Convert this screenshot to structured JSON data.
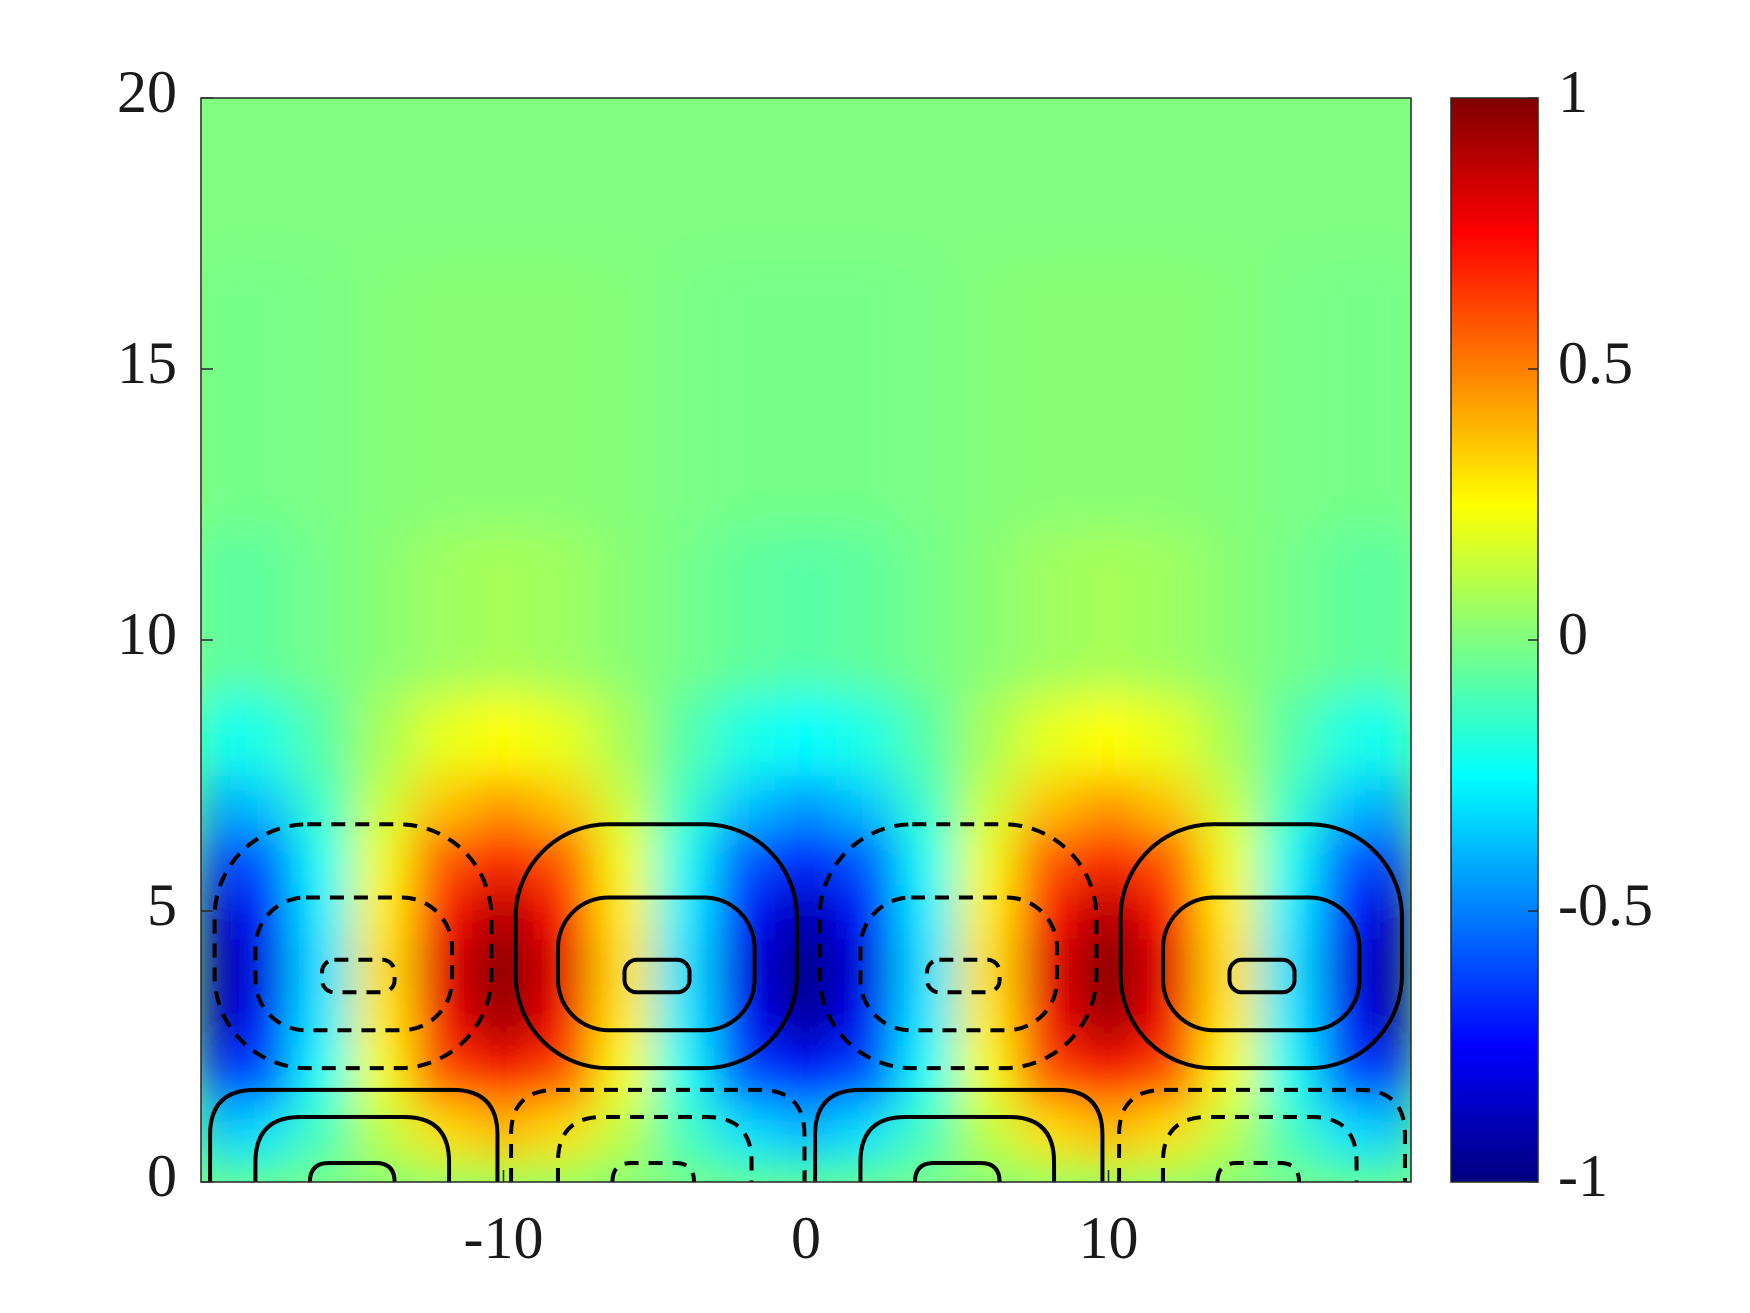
{
  "chart_data": {
    "type": "heatmap",
    "colormap": "jet",
    "xlim": [
      -20,
      20
    ],
    "ylim": [
      0,
      20
    ],
    "xticks": [
      -10,
      0,
      10
    ],
    "yticks": [
      0,
      5,
      10,
      15,
      20
    ],
    "x": [
      -20,
      -18,
      -16,
      -14,
      -12,
      -10,
      -8,
      -6,
      -4,
      -2,
      0,
      2,
      4,
      6,
      8,
      10,
      12,
      14,
      16,
      18,
      20
    ],
    "y": [
      0,
      1,
      2,
      3,
      4,
      5,
      6,
      7,
      8,
      10,
      14,
      20
    ],
    "z": [
      [
        -0.15,
        -0.12,
        -0.05,
        0.05,
        0.12,
        0.15,
        0.12,
        0.05,
        -0.05,
        -0.12,
        -0.15,
        -0.12,
        -0.05,
        0.05,
        0.12,
        0.15,
        0.12,
        0.05,
        -0.05,
        -0.12,
        -0.15
      ],
      [
        -0.4,
        -0.32,
        -0.12,
        0.12,
        0.32,
        0.4,
        0.32,
        0.12,
        -0.12,
        -0.32,
        -0.4,
        -0.32,
        -0.12,
        0.12,
        0.32,
        0.4,
        0.32,
        0.12,
        -0.12,
        -0.32,
        -0.4
      ],
      [
        -0.75,
        -0.61,
        -0.23,
        0.23,
        0.61,
        0.75,
        0.61,
        0.23,
        -0.23,
        -0.61,
        -0.75,
        -0.61,
        -0.23,
        0.23,
        0.61,
        0.75,
        0.61,
        0.23,
        -0.23,
        -0.61,
        -0.75
      ],
      [
        -0.95,
        -0.77,
        -0.29,
        0.29,
        0.77,
        0.95,
        0.77,
        0.29,
        -0.29,
        -0.77,
        -0.95,
        -0.77,
        -0.29,
        0.29,
        0.77,
        0.95,
        0.77,
        0.29,
        -0.29,
        -0.77,
        -0.95
      ],
      [
        -1,
        -0.81,
        -0.31,
        0.31,
        0.81,
        1,
        0.81,
        0.31,
        -0.31,
        -0.81,
        -1,
        -0.81,
        -0.31,
        0.31,
        0.81,
        1,
        0.81,
        0.31,
        -0.31,
        -0.81,
        -1
      ],
      [
        -0.9,
        -0.73,
        -0.28,
        0.28,
        0.73,
        0.9,
        0.73,
        0.28,
        -0.28,
        -0.73,
        -0.9,
        -0.73,
        -0.28,
        0.28,
        0.73,
        0.9,
        0.73,
        0.28,
        -0.28,
        -0.73,
        -0.9
      ],
      [
        -0.7,
        -0.57,
        -0.22,
        0.22,
        0.57,
        0.7,
        0.57,
        0.22,
        -0.22,
        -0.57,
        -0.7,
        -0.57,
        -0.22,
        0.22,
        0.57,
        0.7,
        0.57,
        0.22,
        -0.22,
        -0.57,
        -0.7
      ],
      [
        -0.45,
        -0.36,
        -0.14,
        0.14,
        0.36,
        0.45,
        0.36,
        0.14,
        -0.14,
        -0.36,
        -0.45,
        -0.36,
        -0.14,
        0.14,
        0.36,
        0.45,
        0.36,
        0.14,
        -0.14,
        -0.36,
        -0.45
      ],
      [
        -0.25,
        -0.2,
        -0.08,
        0.08,
        0.2,
        0.25,
        0.2,
        0.08,
        -0.08,
        -0.2,
        -0.25,
        -0.2,
        -0.08,
        0.08,
        0.2,
        0.25,
        0.2,
        0.08,
        -0.08,
        -0.2,
        -0.25
      ],
      [
        -0.08,
        -0.06,
        -0.02,
        0.02,
        0.06,
        0.08,
        0.06,
        0.02,
        -0.02,
        -0.06,
        -0.08,
        -0.06,
        -0.02,
        0.02,
        0.06,
        0.08,
        0.06,
        0.02,
        -0.02,
        -0.06,
        -0.08
      ],
      [
        -0.02,
        -0.02,
        -0.01,
        0.01,
        0.02,
        0.02,
        0.02,
        0.01,
        -0.01,
        -0.02,
        -0.02,
        -0.02,
        -0.01,
        0.01,
        0.02,
        0.02,
        0.02,
        0.01,
        -0.01,
        -0.02,
        -0.02
      ],
      [
        0,
        0,
        0,
        0,
        0,
        0,
        0,
        0,
        0,
        0,
        0,
        0,
        0,
        0,
        0,
        0,
        0,
        0,
        0,
        0,
        0
      ]
    ],
    "colorbar": {
      "lim": [
        -1,
        1
      ],
      "ticks": [
        -1,
        -0.5,
        0,
        0.5,
        1
      ]
    },
    "contours": [
      {
        "style": "dashed",
        "x": [
          -19.55,
          -10.4
        ],
        "y": [
          2.1,
          6.6
        ]
      },
      {
        "style": "dashed",
        "x": [
          -18.2,
          -11.7
        ],
        "y": [
          2.8,
          5.25
        ]
      },
      {
        "style": "dashed",
        "x": [
          -16,
          -13.6
        ],
        "y": [
          3.5,
          4.1
        ]
      },
      {
        "style": "solid",
        "x": [
          -9.6,
          -0.3
        ],
        "y": [
          2.1,
          6.6
        ]
      },
      {
        "style": "solid",
        "x": [
          -8.2,
          -1.7
        ],
        "y": [
          2.8,
          5.25
        ]
      },
      {
        "style": "solid",
        "x": [
          -6,
          -3.85
        ],
        "y": [
          3.5,
          4.1
        ]
      },
      {
        "style": "dashed",
        "x": [
          0.45,
          9.6
        ],
        "y": [
          2.1,
          6.6
        ]
      },
      {
        "style": "dashed",
        "x": [
          1.8,
          8.3
        ],
        "y": [
          2.8,
          5.25
        ]
      },
      {
        "style": "dashed",
        "x": [
          4,
          6.4
        ],
        "y": [
          3.5,
          4.1
        ]
      },
      {
        "style": "solid",
        "x": [
          10.4,
          19.7
        ],
        "y": [
          2.1,
          6.6
        ]
      },
      {
        "style": "solid",
        "x": [
          11.8,
          18.3
        ],
        "y": [
          2.8,
          5.25
        ]
      },
      {
        "style": "solid",
        "x": [
          14,
          16.15
        ],
        "y": [
          3.5,
          4.1
        ]
      },
      {
        "style": "solid",
        "x": [
          -19.7,
          -10.2
        ],
        "y": [
          0,
          1.7
        ]
      },
      {
        "style": "solid",
        "x": [
          -18.2,
          -11.8
        ],
        "y": [
          0,
          1.2
        ]
      },
      {
        "style": "solid",
        "x": [
          -16.4,
          -13.6
        ],
        "y": [
          0,
          0.35
        ]
      },
      {
        "style": "dashed",
        "x": [
          -9.75,
          -0.05
        ],
        "y": [
          0,
          1.7
        ]
      },
      {
        "style": "dashed",
        "x": [
          -8.2,
          -1.8
        ],
        "y": [
          0,
          1.2
        ]
      },
      {
        "style": "dashed",
        "x": [
          -6.4,
          -3.7
        ],
        "y": [
          0,
          0.35
        ]
      },
      {
        "style": "solid",
        "x": [
          0.3,
          9.8
        ],
        "y": [
          0,
          1.7
        ]
      },
      {
        "style": "solid",
        "x": [
          1.8,
          8.2
        ],
        "y": [
          0,
          1.2
        ]
      },
      {
        "style": "solid",
        "x": [
          3.6,
          6.4
        ],
        "y": [
          0,
          0.35
        ]
      },
      {
        "style": "dashed",
        "x": [
          10.35,
          19.8
        ],
        "y": [
          0,
          1.7
        ]
      },
      {
        "style": "dashed",
        "x": [
          11.8,
          18.2
        ],
        "y": [
          0,
          1.2
        ]
      },
      {
        "style": "dashed",
        "x": [
          13.6,
          16.3
        ],
        "y": [
          0,
          0.35
        ]
      }
    ]
  }
}
